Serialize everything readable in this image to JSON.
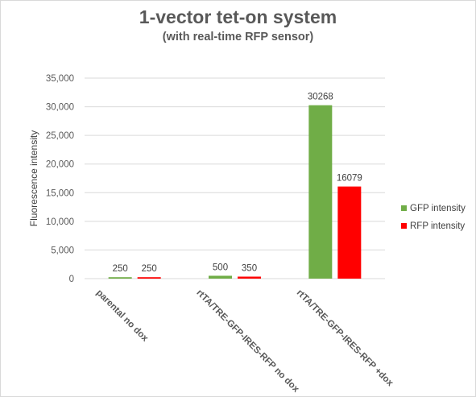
{
  "chart_data": {
    "type": "bar",
    "title": "1-vector tet-on system",
    "subtitle": "(with real-time RFP sensor)",
    "xlabel": "",
    "ylabel": "Fluorescence intensity",
    "ylim": [
      0,
      35000
    ],
    "yticks": [
      0,
      5000,
      10000,
      15000,
      20000,
      25000,
      30000,
      35000
    ],
    "ytick_labels": [
      "0",
      "5,000",
      "10,000",
      "15,000",
      "20,000",
      "25,000",
      "30,000",
      "35,000"
    ],
    "categories": [
      "parental no dox",
      "rtTA/TRE-GFP-IRES-RFP no dox",
      "rtTA/TRE-GFP-IRES-RFP +dox"
    ],
    "series": [
      {
        "name": "GFP intensity",
        "color": "#70ad47",
        "values": [
          250,
          500,
          30268
        ]
      },
      {
        "name": "RFP intensity",
        "color": "#ff0000",
        "values": [
          250,
          350,
          16079
        ]
      }
    ],
    "grid": true,
    "legend_position": "right"
  }
}
